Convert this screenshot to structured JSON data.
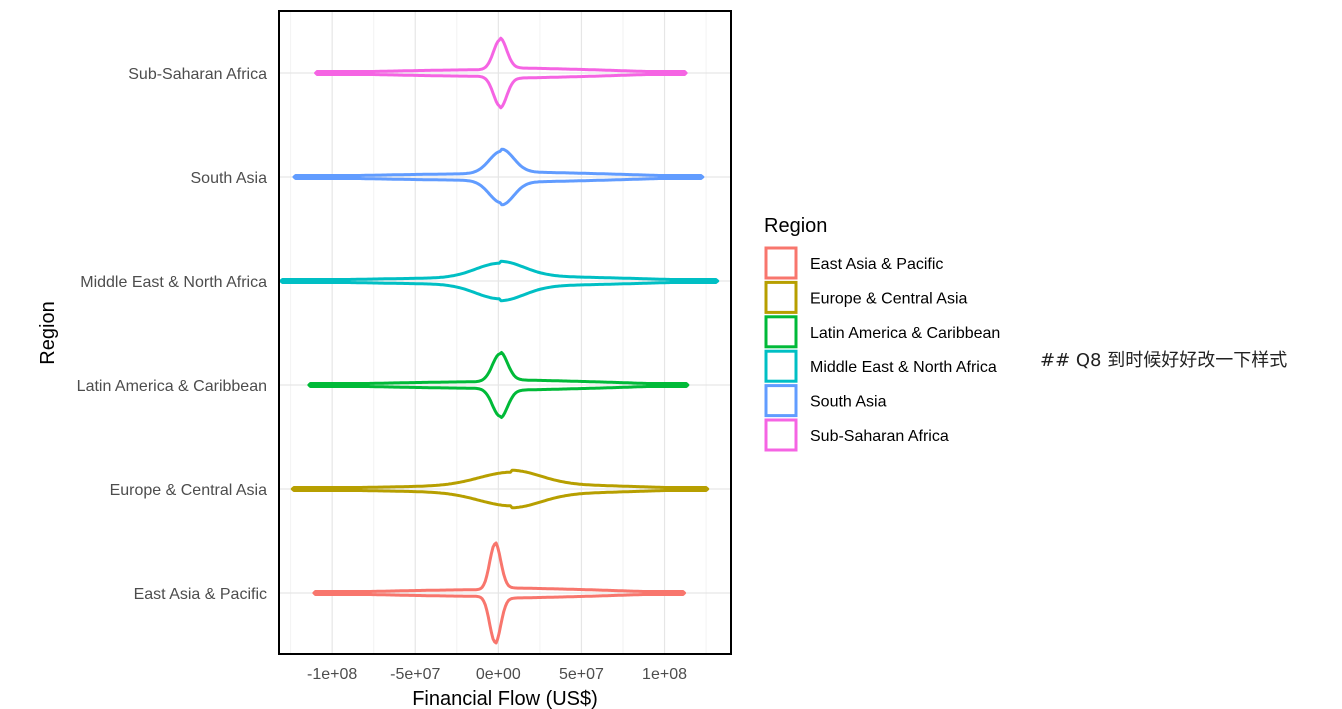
{
  "side_note": "## Q8 到时候好好改一下样式",
  "chart_data": {
    "type": "violin",
    "title": "",
    "xlabel": "Financial Flow (US$)",
    "ylabel": "Region",
    "xlim": [
      -132000000,
      140000000
    ],
    "x_ticks": [
      {
        "value": -100000000,
        "label": "-1e+08"
      },
      {
        "value": -50000000,
        "label": "-5e+07"
      },
      {
        "value": 0,
        "label": "0e+00"
      },
      {
        "value": 50000000,
        "label": "5e+07"
      },
      {
        "value": 100000000,
        "label": "1e+08"
      }
    ],
    "categories": [
      "East Asia & Pacific",
      "Europe & Central Asia",
      "Latin America & Caribbean",
      "Middle East & North Africa",
      "South Asia",
      "Sub-Saharan Africa"
    ],
    "grid": true,
    "legend": {
      "title": "Region",
      "position": "right"
    },
    "series": [
      {
        "name": "East Asia & Pacific",
        "color": "#F8766D",
        "min": -111000000,
        "max": 112000000,
        "peak": -2000000,
        "peak_width": 0.95,
        "sharpness": 6
      },
      {
        "name": "Europe & Central Asia",
        "color": "#B79F00",
        "min": -124000000,
        "max": 126000000,
        "peak": 8000000,
        "peak_width": 0.28,
        "sharpness": 1.2
      },
      {
        "name": "Latin America & Caribbean",
        "color": "#00BA38",
        "min": -114000000,
        "max": 114000000,
        "peak": 1000000,
        "peak_width": 0.58,
        "sharpness": 4.5
      },
      {
        "name": "Middle East & North Africa",
        "color": "#00BFC4",
        "min": -131000000,
        "max": 132000000,
        "peak": 1000000,
        "peak_width": 0.3,
        "sharpness": 1.6
      },
      {
        "name": "South Asia",
        "color": "#619CFF",
        "min": -123000000,
        "max": 123000000,
        "peak": 2000000,
        "peak_width": 0.47,
        "sharpness": 3
      },
      {
        "name": "Sub-Saharan Africa",
        "color": "#F564E3",
        "min": -110000000,
        "max": 113000000,
        "peak": 1000000,
        "peak_width": 0.62,
        "sharpness": 5
      }
    ]
  }
}
